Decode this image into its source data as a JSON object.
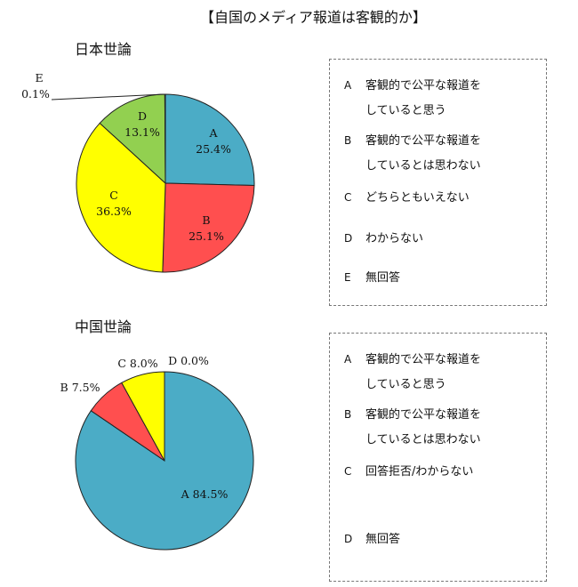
{
  "title": "【自国のメディア報道は客観的か】",
  "chart_data": [
    {
      "type": "pie",
      "title": "日本世論",
      "slices": [
        {
          "name": "A",
          "value": 25.4,
          "color": "#4bacc6"
        },
        {
          "name": "B",
          "value": 25.1,
          "color": "#ff4f4f"
        },
        {
          "name": "C",
          "value": 36.3,
          "color": "#ffff00"
        },
        {
          "name": "D",
          "value": 13.1,
          "color": "#92d050"
        },
        {
          "name": "E",
          "value": 0.1,
          "color": "#ffffff"
        }
      ],
      "labels": [
        {
          "name": "A",
          "value": "25.4%"
        },
        {
          "name": "B",
          "value": "25.1%"
        },
        {
          "name": "C",
          "value": "36.3%"
        },
        {
          "name": "D",
          "value": "13.1%"
        },
        {
          "name": "E",
          "value": "0.1%"
        }
      ],
      "legend": [
        {
          "key": "A",
          "lines": [
            "客観的で公平な報道を",
            "していると思う"
          ]
        },
        {
          "key": "B",
          "lines": [
            "客観的で公平な報道を",
            "しているとは思わない"
          ]
        },
        {
          "key": "C",
          "lines": [
            "どちらともいえない"
          ]
        },
        {
          "key": "D",
          "lines": [
            "わからない"
          ]
        },
        {
          "key": "E",
          "lines": [
            "無回答"
          ]
        }
      ]
    },
    {
      "type": "pie",
      "title": "中国世論",
      "slices": [
        {
          "name": "A",
          "value": 84.5,
          "color": "#4bacc6"
        },
        {
          "name": "B",
          "value": 7.5,
          "color": "#ff4f4f"
        },
        {
          "name": "C",
          "value": 8.0,
          "color": "#ffff00"
        },
        {
          "name": "D",
          "value": 0.0,
          "color": "#92d050"
        }
      ],
      "labels": [
        {
          "name": "A",
          "value": "A 84.5%"
        },
        {
          "name": "B",
          "value": "B 7.5%"
        },
        {
          "name": "C",
          "value": "C 8.0%"
        },
        {
          "name": "D",
          "value": "D 0.0%"
        }
      ],
      "legend": [
        {
          "key": "A",
          "lines": [
            "客観的で公平な報道を",
            "していると思う"
          ]
        },
        {
          "key": "B",
          "lines": [
            "客観的で公平な報道を",
            "しているとは思わない"
          ]
        },
        {
          "key": "C",
          "lines": [
            "回答拒否/わからない"
          ]
        },
        {
          "key": "D",
          "lines": [
            "無回答"
          ]
        }
      ]
    }
  ]
}
